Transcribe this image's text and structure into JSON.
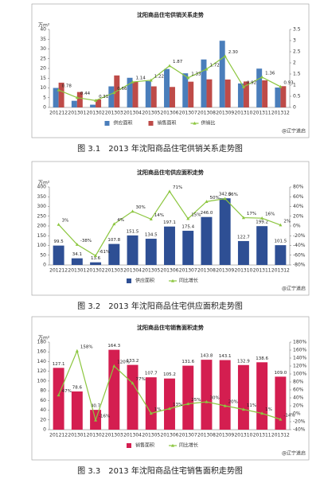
{
  "chart_data": [
    {
      "type": "combo",
      "title": "沈阳商品住宅供销关系走势",
      "caption": "图 3.1　2013 年沈阳商品住宅供销关系走势图",
      "ylabel": "万m²",
      "source": "@辽宁道启",
      "categories": [
        "201212",
        "201301",
        "201302",
        "201303",
        "201304",
        "201305",
        "201306",
        "201307",
        "201308",
        "201309",
        "201310",
        "201311",
        "201312"
      ],
      "ylim": [
        0,
        40
      ],
      "yticks": [
        0,
        5,
        10,
        15,
        20,
        25,
        30,
        35,
        40
      ],
      "y2lim": [
        0,
        3.5
      ],
      "y2ticks": [
        0,
        0.5,
        1,
        1.5,
        2,
        2.5,
        3,
        3.5
      ],
      "series": [
        {
          "name": "供应面积",
          "kind": "bar",
          "color": "#4a7ebb",
          "values": [
            10,
            3.4,
            1.4,
            10.8,
            15.2,
            13.5,
            19.7,
            17.5,
            24.6,
            34.2,
            12.3,
            19.9,
            10.2
          ]
        },
        {
          "name": "销售面积",
          "kind": "bar",
          "color": "#be4b48",
          "values": [
            12.7,
            7.9,
            4.1,
            16.4,
            13.3,
            10.8,
            10.5,
            13.2,
            14.4,
            14.3,
            13.3,
            13.9,
            10.9
          ]
        },
        {
          "name": "供销比",
          "kind": "line",
          "axis": "y2",
          "color": "#8cc63f",
          "values": [
            0.78,
            0.44,
            0.31,
            0.66,
            1.14,
            1.22,
            1.87,
            1.33,
            1.72,
            2.3,
            0.92,
            1.36,
            0.93
          ],
          "value_labels": [
            "0.78",
            "0.44",
            "0.31",
            "0.66",
            "1.14",
            "1.22",
            "1.87",
            "1.33",
            "1.72",
            "2.30",
            "0.92",
            "1.36",
            "0.93"
          ]
        }
      ]
    },
    {
      "type": "combo",
      "title": "沈阳商品住宅供应面积走势",
      "caption": "图 3.2　2013 年沈阳商品住宅供应面积走势图",
      "ylabel": "万m²",
      "source": "@辽宁道启",
      "categories": [
        "201212",
        "201301",
        "201302",
        "201303",
        "201304",
        "201305",
        "201306",
        "201307",
        "201308",
        "201309",
        "201310",
        "201311",
        "201312"
      ],
      "ylim": [
        0,
        400
      ],
      "yticks": [
        0,
        50,
        100,
        150,
        200,
        250,
        300,
        350,
        400
      ],
      "y2lim": [
        -80,
        80
      ],
      "y2ticks": [
        {
          "value": -80,
          "label": "-80%"
        },
        {
          "value": -60,
          "label": "-60%"
        },
        {
          "value": -40,
          "label": "-40%"
        },
        {
          "value": -20,
          "label": "-20%"
        },
        {
          "value": 0,
          "label": "0%"
        },
        {
          "value": 20,
          "label": "20%"
        },
        {
          "value": 40,
          "label": "40%"
        },
        {
          "value": 60,
          "label": "60%"
        },
        {
          "value": 80,
          "label": "80%"
        }
      ],
      "series": [
        {
          "name": "供应面积",
          "kind": "bar",
          "color": "#2e4f94",
          "values": [
            99.5,
            34.1,
            13.6,
            107.8,
            151.5,
            134.5,
            197.1,
            175.4,
            246,
            342,
            122.7,
            199.2,
            101.5
          ],
          "value_labels": [
            "99.5",
            "34.1",
            "13.6",
            "107.8",
            "151.5",
            "134.5",
            "197.1",
            "175.4",
            "246.0",
            "342.0",
            "122.7",
            "199.2",
            "101.5"
          ]
        },
        {
          "name": "同比增长",
          "kind": "line",
          "axis": "y2",
          "color": "#8cc63f",
          "values": [
            3,
            -38,
            -61,
            4,
            30,
            14,
            71,
            15,
            50,
            56,
            17,
            16,
            2
          ],
          "value_labels": [
            "3%",
            "-38%",
            "-61%",
            "4%",
            "30%",
            "14%",
            "71%",
            "15%",
            "50%",
            "56%",
            "17%",
            "16%",
            "2%"
          ]
        }
      ]
    },
    {
      "type": "combo",
      "title": "沈阳商品住宅销售面积走势",
      "caption": "图 3.3　2013 年沈阳商品住宅销售面积走势图",
      "ylabel": "万m²",
      "source": "@辽宁道启",
      "categories": [
        "201212",
        "201301",
        "201302",
        "201303",
        "201304",
        "201305",
        "201306",
        "201307",
        "201308",
        "201309",
        "201310",
        "201311",
        "201312"
      ],
      "ylim": [
        0,
        180
      ],
      "yticks": [
        0,
        20,
        40,
        60,
        80,
        100,
        120,
        140,
        160,
        180
      ],
      "y2lim": [
        -40,
        180
      ],
      "y2ticks": [
        {
          "value": -40,
          "label": "-40%"
        },
        {
          "value": -20,
          "label": "-20%"
        },
        {
          "value": 0,
          "label": "0%"
        },
        {
          "value": 20,
          "label": "20%"
        },
        {
          "value": 40,
          "label": "40%"
        },
        {
          "value": 60,
          "label": "60%"
        },
        {
          "value": 80,
          "label": "80%"
        },
        {
          "value": 100,
          "label": "100%"
        },
        {
          "value": 120,
          "label": "120%"
        },
        {
          "value": 140,
          "label": "140%"
        },
        {
          "value": 160,
          "label": "160%"
        },
        {
          "value": 180,
          "label": "180%"
        }
      ],
      "series": [
        {
          "name": "销售面积",
          "kind": "bar",
          "color": "#d41e50",
          "values": [
            127.1,
            78.6,
            40.7,
            164.3,
            133.2,
            107.7,
            105.2,
            131.6,
            143.8,
            143.1,
            132.9,
            138.6,
            109
          ],
          "value_labels": [
            "127.1",
            "78.6",
            "40.7",
            "164.3",
            "133.2",
            "107.7",
            "105.2",
            "131.6",
            "143.8",
            "143.1",
            "132.9",
            "138.6",
            "109.0"
          ]
        },
        {
          "name": "同比增长",
          "kind": "line",
          "axis": "y2",
          "color": "#8cc63f",
          "values": [
            47,
            158,
            -16,
            120,
            77,
            1,
            13,
            25,
            30,
            20,
            11,
            1,
            -14
          ],
          "value_labels": [
            "47%",
            "158%",
            "-16%",
            "120%",
            "77%",
            "1%",
            "13%",
            "25%",
            "30%",
            "20%",
            "11%",
            "1%",
            "-14%"
          ]
        }
      ]
    }
  ]
}
